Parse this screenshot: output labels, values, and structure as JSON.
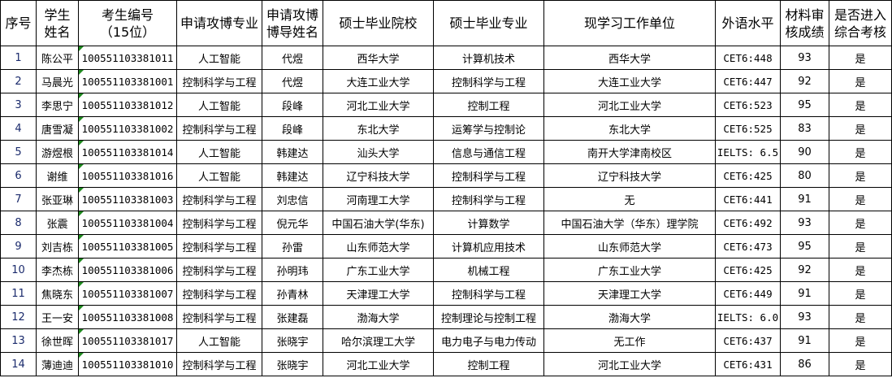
{
  "headers": [
    "序号",
    "学生\n姓名",
    "考生编号\n（15位）",
    "申请攻博专业",
    "申请攻博\n博导姓名",
    "硕士毕业院校",
    "硕士毕业专业",
    "现学习工作单位",
    "外语水平",
    "材料审\n核成绩",
    "是否进入\n综合考核"
  ],
  "rows": [
    [
      "1",
      "陈公平",
      "100551103381011",
      "人工智能",
      "代煜",
      "西华大学",
      "计算机技术",
      "西华大学",
      "CET6:448",
      "93",
      "是"
    ],
    [
      "2",
      "马晨光",
      "100551103381001",
      "控制科学与工程",
      "代煜",
      "大连工业大学",
      "控制科学与工程",
      "大连工业大学",
      "CET6:447",
      "92",
      "是"
    ],
    [
      "3",
      "李思宁",
      "100551103381012",
      "人工智能",
      "段峰",
      "河北工业大学",
      "控制工程",
      "河北工业大学",
      "CET6:523",
      "95",
      "是"
    ],
    [
      "4",
      "唐雪凝",
      "100551103381002",
      "控制科学与工程",
      "段峰",
      "东北大学",
      "运筹学与控制论",
      "东北大学",
      "CET6:525",
      "83",
      "是"
    ],
    [
      "5",
      "游煜根",
      "100551103381014",
      "人工智能",
      "韩建达",
      "汕头大学",
      "信息与通信工程",
      "南开大学津南校区",
      "IELTS: 6.5",
      "90",
      "是"
    ],
    [
      "6",
      "谢维",
      "100551103381016",
      "人工智能",
      "韩建达",
      "辽宁科技大学",
      "控制科学与工程",
      "辽宁科技大学",
      "CET6:425",
      "80",
      "是"
    ],
    [
      "7",
      "张亚琳",
      "100551103381003",
      "控制科学与工程",
      "刘忠信",
      "河南理工大学",
      "控制科学与工程",
      "无",
      "CET6:441",
      "91",
      "是"
    ],
    [
      "8",
      "张震",
      "100551103381004",
      "控制科学与工程",
      "倪元华",
      "中国石油大学(华东)",
      "计算数学",
      "中国石油大学（华东）理学院",
      "CET6:492",
      "93",
      "是"
    ],
    [
      "9",
      "刘吉栋",
      "100551103381005",
      "控制科学与工程",
      "孙雷",
      "山东师范大学",
      "计算机应用技术",
      "山东师范大学",
      "CET6:473",
      "95",
      "是"
    ],
    [
      "10",
      "李杰栋",
      "100551103381006",
      "控制科学与工程",
      "孙明玮",
      "广东工业大学",
      "机械工程",
      "广东工业大学",
      "CET6:425",
      "92",
      "是"
    ],
    [
      "11",
      "焦晓东",
      "100551103381007",
      "控制科学与工程",
      "孙青林",
      "天津理工大学",
      "控制科学与工程",
      "天津理工大学",
      "CET6:449",
      "91",
      "是"
    ],
    [
      "12",
      "王一安",
      "100551103381008",
      "控制科学与工程",
      "张建磊",
      "渤海大学",
      "控制理论与控制工程",
      "渤海大学",
      "IELTS: 6.0",
      "93",
      "是"
    ],
    [
      "13",
      "徐世晖",
      "100551103381017",
      "人工智能",
      "张晓宇",
      "哈尔滨理工大学",
      "电力电子与电力传动",
      "无工作",
      "CET6:437",
      "91",
      "是"
    ],
    [
      "14",
      "薄迪迪",
      "100551103381010",
      "控制科学与工程",
      "张晓宇",
      "河北工业大学",
      "控制工程",
      "河北工业大学",
      "CET6:431",
      "86",
      "是"
    ]
  ]
}
